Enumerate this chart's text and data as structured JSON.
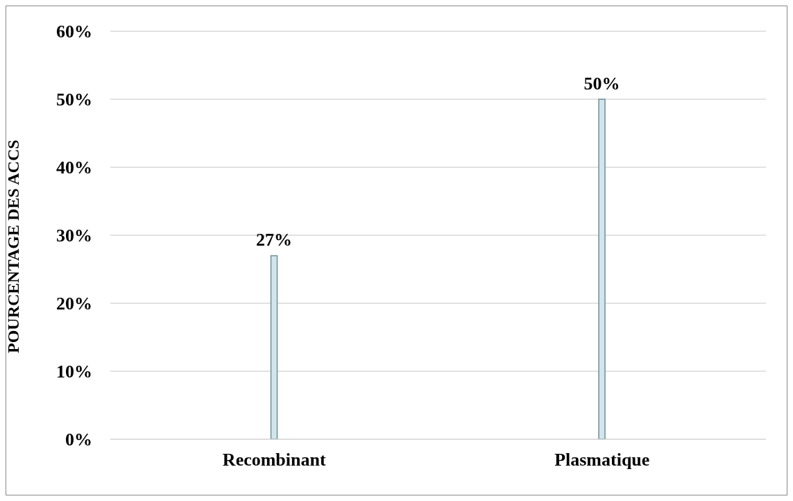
{
  "chart_data": {
    "type": "bar",
    "ylabel": "POURCENTAGE DES ACCS",
    "categories": [
      "Recombinant",
      "Plasmatique"
    ],
    "values": [
      27,
      50
    ],
    "value_labels": [
      "27%",
      "50%"
    ],
    "color": "#d2e5ea",
    "ylim": [
      0,
      60
    ],
    "yticks": [
      {
        "value": 0,
        "label": "0%"
      },
      {
        "value": 10,
        "label": "10%"
      },
      {
        "value": 20,
        "label": "20%"
      },
      {
        "value": 30,
        "label": "30%"
      },
      {
        "value": 40,
        "label": "40%"
      },
      {
        "value": 50,
        "label": "50%"
      },
      {
        "value": 60,
        "label": "60%"
      }
    ],
    "grid": "y"
  }
}
